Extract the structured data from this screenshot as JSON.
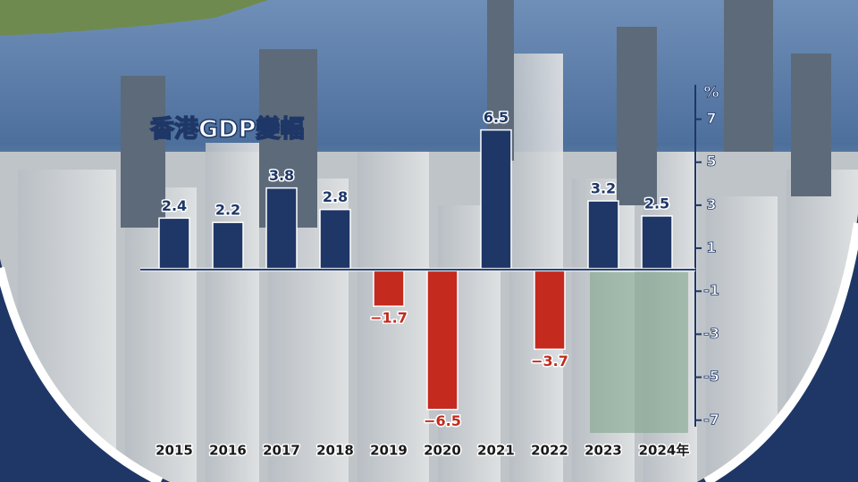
{
  "chart_data": {
    "type": "bar",
    "title": "香港GDP變幅",
    "y_axis_label": "%",
    "categories": [
      "2015",
      "2016",
      "2017",
      "2018",
      "2019",
      "2020",
      "2021",
      "2022",
      "2023",
      "2024年"
    ],
    "values": [
      2.4,
      2.2,
      3.8,
      2.8,
      -1.7,
      -6.5,
      6.5,
      -3.7,
      3.2,
      2.5
    ],
    "value_labels": [
      "2.4",
      "2.2",
      "3.8",
      "2.8",
      "−1.7",
      "−6.5",
      "6.5",
      "−3.7",
      "3.2",
      "2.5"
    ],
    "color": "#1e3767",
    "negative_color": "#c42a1e",
    "ylim": [
      -7.3,
      8.6
    ],
    "yticks": [
      7,
      5,
      3,
      1,
      -1,
      -3,
      -5,
      -7
    ]
  }
}
